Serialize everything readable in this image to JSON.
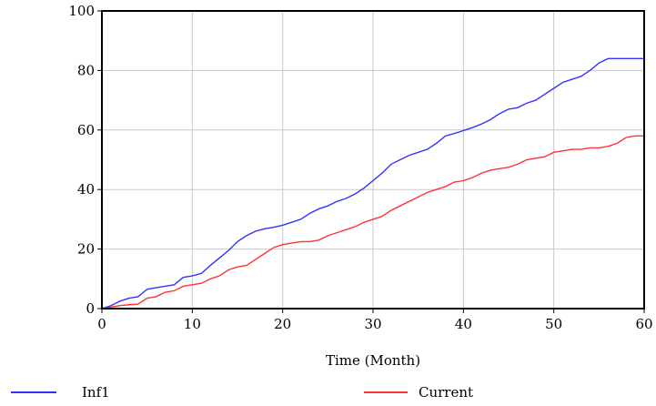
{
  "chart_data": {
    "type": "line",
    "xlabel": "Time (Month)",
    "ylabel": "",
    "xlim": [
      0,
      60
    ],
    "ylim": [
      0,
      100
    ],
    "x_ticks": [
      0,
      10,
      20,
      30,
      40,
      50,
      60
    ],
    "y_ticks": [
      0,
      20,
      40,
      60,
      80,
      100
    ],
    "grid": true,
    "legend_position": "bottom",
    "x": [
      0,
      1,
      2,
      3,
      4,
      5,
      6,
      7,
      8,
      9,
      10,
      11,
      12,
      13,
      14,
      15,
      16,
      17,
      18,
      19,
      20,
      21,
      22,
      23,
      24,
      25,
      26,
      27,
      28,
      29,
      30,
      31,
      32,
      33,
      34,
      35,
      36,
      37,
      38,
      39,
      40,
      41,
      42,
      43,
      44,
      45,
      46,
      47,
      48,
      49,
      50,
      51,
      52,
      53,
      54,
      55,
      56,
      57,
      58,
      59,
      60
    ],
    "series": [
      {
        "name": "Inf1",
        "color": "#3333ff",
        "values": [
          0,
          1,
          2.5,
          3.5,
          4,
          6.5,
          7,
          7.5,
          8,
          10.5,
          11,
          11.8,
          14.5,
          17,
          19.5,
          22.5,
          24.5,
          26,
          26.8,
          27.3,
          28,
          29,
          30,
          32,
          33.5,
          34.5,
          36,
          37,
          38.5,
          40.5,
          43,
          45.5,
          48.5,
          50,
          51.5,
          52.5,
          53.5,
          55.5,
          58,
          58.8,
          59.8,
          60.8,
          62,
          63.5,
          65.5,
          67,
          67.5,
          69,
          70,
          72,
          74,
          76,
          77,
          78,
          80,
          82.5,
          84,
          84,
          84,
          84,
          84
        ]
      },
      {
        "name": "Current",
        "color": "#ff3333",
        "values": [
          0,
          0.5,
          1,
          1.3,
          1.5,
          3.5,
          4,
          5.5,
          6,
          7.5,
          8,
          8.5,
          10,
          11,
          13,
          14,
          14.5,
          16.5,
          18.5,
          20.5,
          21.5,
          22,
          22.5,
          22.5,
          23,
          24.5,
          25.5,
          26.5,
          27.5,
          29,
          30,
          31,
          33,
          34.5,
          36,
          37.5,
          39,
          40,
          41,
          42.5,
          43,
          44,
          45.5,
          46.5,
          47,
          47.5,
          48.5,
          50,
          50.5,
          51,
          52.5,
          53,
          53.5,
          53.5,
          54,
          54,
          54.5,
          55.5,
          57.5,
          58,
          58
        ]
      }
    ]
  }
}
